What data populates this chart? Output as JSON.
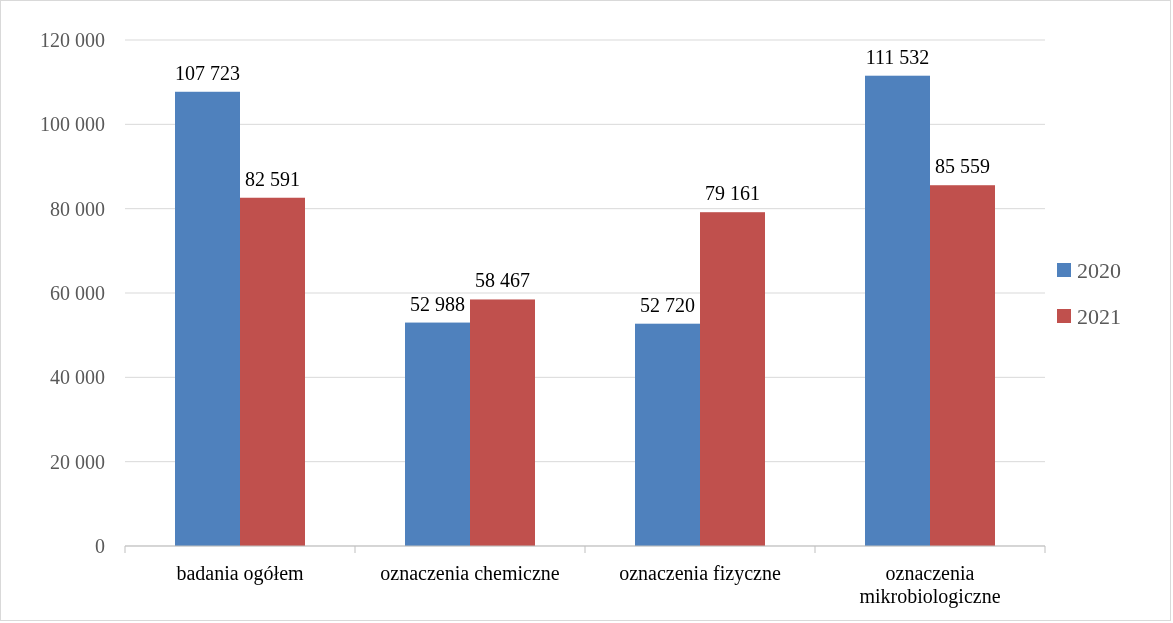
{
  "chart_data": {
    "type": "bar",
    "categories": [
      "badania ogółem",
      "oznaczenia chemiczne",
      "oznaczenia fizyczne",
      "oznaczenia mikrobiologiczne"
    ],
    "series": [
      {
        "name": "2020",
        "color": "#4f81bd",
        "values": [
          107723,
          52988,
          52720,
          111532
        ],
        "value_labels": [
          "107 723",
          "52 988",
          "52 720",
          "111 532"
        ]
      },
      {
        "name": "2021",
        "color": "#c0504d",
        "values": [
          82591,
          58467,
          79161,
          85559
        ],
        "value_labels": [
          "82 591",
          "58 467",
          "79 161",
          "85 559"
        ]
      }
    ],
    "ylim": [
      0,
      120000
    ],
    "yticks": [
      {
        "value": 0,
        "label": "0"
      },
      {
        "value": 20000,
        "label": "20 000"
      },
      {
        "value": 40000,
        "label": "40 000"
      },
      {
        "value": 60000,
        "label": "60 000"
      },
      {
        "value": 80000,
        "label": "80 000"
      },
      {
        "value": 100000,
        "label": "100 000"
      },
      {
        "value": 120000,
        "label": "120 000"
      }
    ],
    "grid": "y",
    "legend": "right"
  }
}
